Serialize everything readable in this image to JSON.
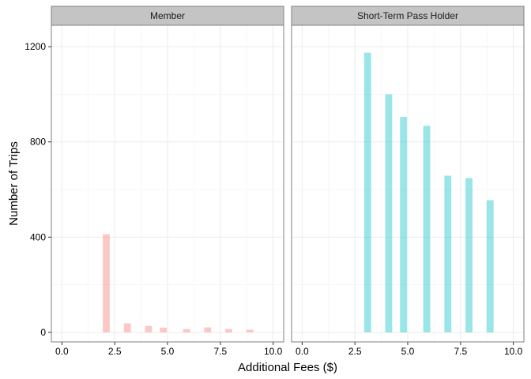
{
  "chart_data": {
    "type": "bar",
    "title": "",
    "xlabel": "Additional Fees ($)",
    "ylabel": "Number of Trips",
    "xlim": [
      -0.5,
      10.5
    ],
    "ylim": [
      -40,
      1290
    ],
    "x_ticks": [
      0.0,
      2.5,
      5.0,
      7.5,
      10.0
    ],
    "x_tick_labels": [
      "0.0",
      "2.5",
      "5.0",
      "7.5",
      "10.0"
    ],
    "y_ticks": [
      0,
      400,
      800,
      1200
    ],
    "y_tick_labels": [
      "0",
      "400",
      "800",
      "1200"
    ],
    "grid": true,
    "legend": "none",
    "bar_width": 0.33,
    "panels": [
      {
        "name": "Member",
        "color": "#F8766D",
        "x": [
          2.1,
          3.1,
          4.1,
          4.8,
          5.9,
          6.9,
          7.9,
          8.9
        ],
        "values": [
          412,
          38,
          27,
          20,
          14,
          21,
          14,
          11
        ]
      },
      {
        "name": "Short-Term Pass Holder",
        "color": "#00BFC4",
        "x": [
          3.1,
          4.1,
          4.8,
          5.9,
          6.9,
          7.9,
          8.9
        ],
        "values": [
          1175,
          1000,
          905,
          868,
          658,
          648,
          555
        ]
      }
    ]
  }
}
